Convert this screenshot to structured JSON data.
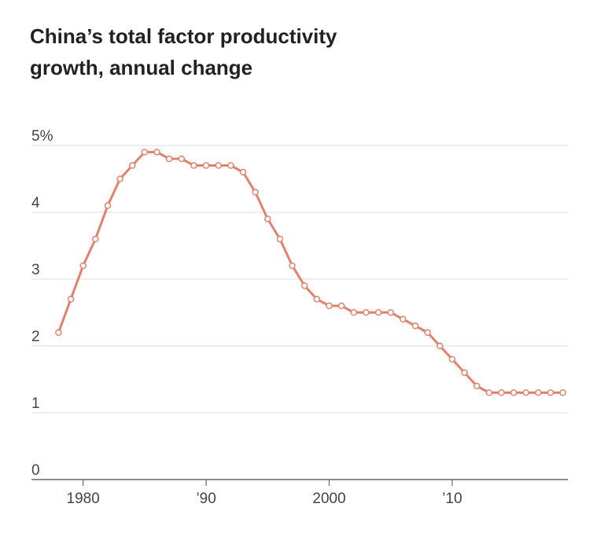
{
  "chart_data": {
    "type": "line",
    "title": "China’s total factor productivity growth, annual change",
    "x": [
      1978,
      1979,
      1980,
      1981,
      1982,
      1983,
      1984,
      1985,
      1986,
      1987,
      1988,
      1989,
      1990,
      1991,
      1992,
      1993,
      1994,
      1995,
      1996,
      1997,
      1998,
      1999,
      2000,
      2001,
      2002,
      2003,
      2004,
      2005,
      2006,
      2007,
      2008,
      2009,
      2010,
      2011,
      2012,
      2013,
      2014,
      2015,
      2016,
      2017,
      2018,
      2019
    ],
    "series": [
      {
        "name": "Total factor productivity growth",
        "color": "#e0826c",
        "values": [
          2.2,
          2.7,
          3.2,
          3.6,
          4.1,
          4.5,
          4.7,
          4.9,
          4.9,
          4.8,
          4.8,
          4.7,
          4.7,
          4.7,
          4.7,
          4.6,
          4.3,
          3.9,
          3.6,
          3.2,
          2.9,
          2.7,
          2.6,
          2.6,
          2.5,
          2.5,
          2.5,
          2.5,
          2.4,
          2.3,
          2.2,
          2.0,
          1.8,
          1.6,
          1.4,
          1.3,
          1.3,
          1.3,
          1.3,
          1.3,
          1.3,
          1.3
        ]
      }
    ],
    "xlim": [
      1975.8,
      2019.4
    ],
    "xticks": [
      1980,
      {
        "value": 1990,
        "label": "’90"
      },
      2000,
      {
        "value": 2010,
        "label": "’10"
      }
    ],
    "ylim": [
      0,
      5
    ],
    "yticks": [
      0,
      1,
      2,
      3,
      4,
      {
        "value": 5,
        "label": "5%"
      }
    ],
    "grid": true
  }
}
